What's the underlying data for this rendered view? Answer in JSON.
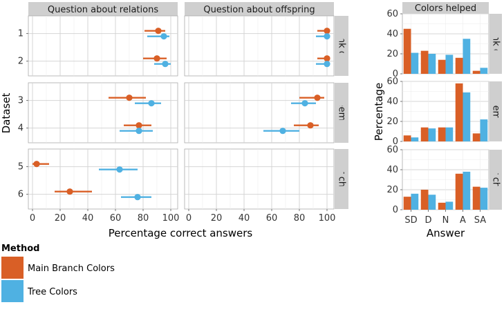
{
  "colors": {
    "main_branch": "#d95f26",
    "tree": "#4fb1e2",
    "panel_bg": "#ffffff",
    "grid": "#d4d4d4",
    "strip_bg": "#cfcfcf"
  },
  "legend": {
    "title": "Method",
    "items": [
      {
        "label": "Main Branch Colors",
        "color": "#d95f26"
      },
      {
        "label": "Tree Colors",
        "color": "#4fb1e2"
      }
    ]
  },
  "chart_data": [
    {
      "type": "scatter",
      "subtype": "dot-with-interval (faceted)",
      "xlabel": "Percentage correct answers",
      "ylabel": "Dataset",
      "xlim": [
        -3,
        105
      ],
      "xticks": [
        0,
        20,
        40,
        60,
        80,
        100
      ],
      "columns": [
        "Question about relations",
        "Question about offspring"
      ],
      "rows": [
        {
          "label": "Node-link diagram",
          "display": "ode-link diagra",
          "datasets": [
            "1",
            "2"
          ]
        },
        {
          "label": "Treemap",
          "display": "Treemap",
          "datasets": [
            "3",
            "4"
          ]
        },
        {
          "label": "Bar chart",
          "display": "Bar chart",
          "datasets": [
            "5",
            "6"
          ]
        }
      ],
      "series": [
        {
          "method": "Main Branch Colors",
          "points": [
            {
              "column": "Question about relations",
              "dataset": "1",
              "value": 91,
              "low": 81,
              "high": 96
            },
            {
              "column": "Question about relations",
              "dataset": "2",
              "value": 90,
              "low": 80,
              "high": 97
            },
            {
              "column": "Question about relations",
              "dataset": "3",
              "value": 70,
              "low": 55,
              "high": 82
            },
            {
              "column": "Question about relations",
              "dataset": "4",
              "value": 77,
              "low": 66,
              "high": 86
            },
            {
              "column": "Question about relations",
              "dataset": "5",
              "value": 3,
              "low": 0,
              "high": 12
            },
            {
              "column": "Question about relations",
              "dataset": "6",
              "value": 27,
              "low": 16,
              "high": 43
            },
            {
              "column": "Question about offspring",
              "dataset": "1",
              "value": 100,
              "low": 93,
              "high": 100
            },
            {
              "column": "Question about offspring",
              "dataset": "2",
              "value": 100,
              "low": 93,
              "high": 100
            },
            {
              "column": "Question about offspring",
              "dataset": "3",
              "value": 93,
              "low": 80,
              "high": 98
            },
            {
              "column": "Question about offspring",
              "dataset": "4",
              "value": 88,
              "low": 76,
              "high": 94
            }
          ]
        },
        {
          "method": "Tree Colors",
          "points": [
            {
              "column": "Question about relations",
              "dataset": "1",
              "value": 95,
              "low": 83,
              "high": 99
            },
            {
              "column": "Question about relations",
              "dataset": "2",
              "value": 96,
              "low": 88,
              "high": 100
            },
            {
              "column": "Question about relations",
              "dataset": "3",
              "value": 86,
              "low": 74,
              "high": 93
            },
            {
              "column": "Question about relations",
              "dataset": "4",
              "value": 77,
              "low": 63,
              "high": 87
            },
            {
              "column": "Question about relations",
              "dataset": "5",
              "value": 63,
              "low": 48,
              "high": 76
            },
            {
              "column": "Question about relations",
              "dataset": "6",
              "value": 76,
              "low": 64,
              "high": 86
            },
            {
              "column": "Question about offspring",
              "dataset": "1",
              "value": 100,
              "low": 92,
              "high": 100
            },
            {
              "column": "Question about offspring",
              "dataset": "2",
              "value": 100,
              "low": 92,
              "high": 100
            },
            {
              "column": "Question about offspring",
              "dataset": "3",
              "value": 84,
              "low": 74,
              "high": 92
            },
            {
              "column": "Question about offspring",
              "dataset": "4",
              "value": 68,
              "low": 54,
              "high": 80
            }
          ]
        }
      ]
    },
    {
      "type": "bar",
      "title": "Colors helped",
      "xlabel": "Answer",
      "ylabel": "Percentage",
      "categories": [
        "SD",
        "D",
        "N",
        "A",
        "SA"
      ],
      "ylim": [
        0,
        60
      ],
      "yticks": [
        0,
        20,
        40,
        60
      ],
      "panels": [
        {
          "row": "Node-link diagram",
          "display": "ode-link diagra",
          "series": [
            {
              "name": "Main Branch Colors",
              "values": [
                45,
                23,
                14,
                16,
                3
              ]
            },
            {
              "name": "Tree Colors",
              "values": [
                21,
                20,
                19,
                35,
                6
              ]
            }
          ]
        },
        {
          "row": "Treemap",
          "display": "Treemap",
          "series": [
            {
              "name": "Main Branch Colors",
              "values": [
                6,
                14,
                14,
                58,
                8
              ]
            },
            {
              "name": "Tree Colors",
              "values": [
                4,
                13,
                14,
                49,
                22
              ]
            }
          ]
        },
        {
          "row": "Bar chart",
          "display": "Bar chart",
          "series": [
            {
              "name": "Main Branch Colors",
              "values": [
                13,
                20,
                7,
                36,
                23
              ]
            },
            {
              "name": "Tree Colors",
              "values": [
                16,
                15,
                8,
                38,
                22
              ]
            }
          ]
        }
      ]
    }
  ]
}
